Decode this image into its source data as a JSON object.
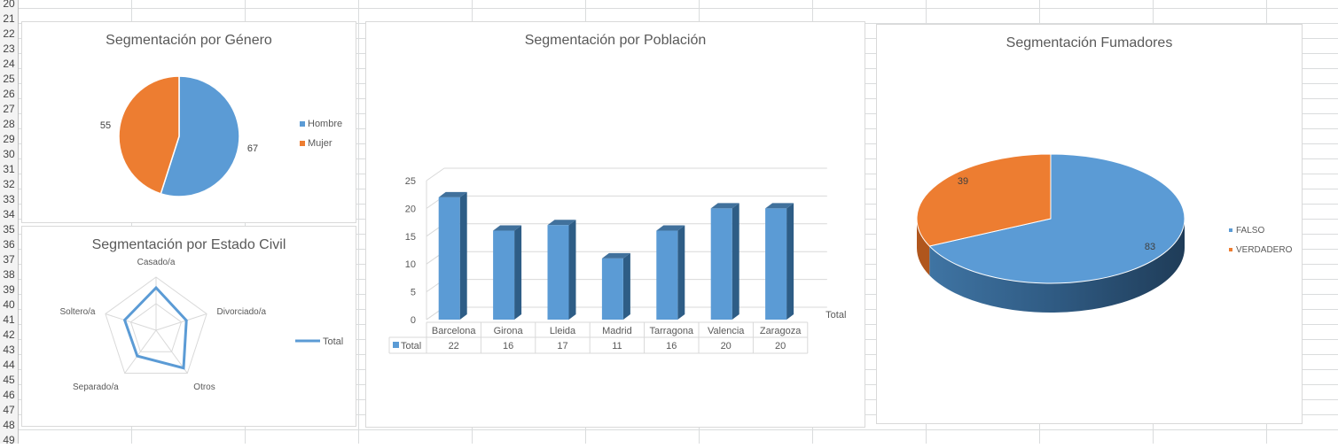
{
  "sheet": {
    "row_numbers": [
      "20",
      "21",
      "22",
      "23",
      "24",
      "25",
      "26",
      "27",
      "28",
      "29",
      "30",
      "31",
      "32",
      "33",
      "34",
      "35",
      "36",
      "37",
      "38",
      "39",
      "40",
      "41",
      "42",
      "43",
      "44",
      "45",
      "46",
      "47",
      "48",
      "49"
    ]
  },
  "colors": {
    "blue": "#5b9bd5",
    "orange": "#ed7d31",
    "dark_blue": "#2e5d86",
    "text": "#595959",
    "gridline": "#d9d9d9"
  },
  "chart_data": [
    {
      "id": "genero",
      "type": "pie",
      "title": "Segmentación por Género",
      "categories": [
        "Hombre",
        "Mujer"
      ],
      "values": [
        67,
        55
      ],
      "colors": [
        "#5b9bd5",
        "#ed7d31"
      ],
      "legend_position": "right",
      "data_labels": true
    },
    {
      "id": "estado_civil",
      "type": "radar",
      "title": "Segmentación por Estado Civil",
      "categories": [
        "Casado/a",
        "Divorciado/a",
        "Otros",
        "Separado/a",
        "Soltero/a"
      ],
      "series": [
        {
          "name": "Total",
          "values": [
            40,
            30,
            44,
            30,
            31
          ]
        }
      ],
      "rmax": 50,
      "rings": 2,
      "legend_position": "right"
    },
    {
      "id": "poblacion",
      "type": "bar",
      "title": "Segmentación por Población",
      "categories": [
        "Barcelona",
        "Girona",
        "Lleida",
        "Madrid",
        "Tarragona",
        "Valencia",
        "Zaragoza"
      ],
      "series": [
        {
          "name": "Total",
          "values": [
            22,
            16,
            17,
            11,
            16,
            20,
            20
          ]
        }
      ],
      "ylim": [
        0,
        25
      ],
      "yticks": [
        0,
        5,
        10,
        15,
        20,
        25
      ],
      "grid": true,
      "data_table": true,
      "depth_axis_label": "Total"
    },
    {
      "id": "fumadores",
      "type": "pie",
      "title": "Segmentación Fumadores",
      "categories": [
        "FALSO",
        "VERDADERO"
      ],
      "values": [
        83,
        39
      ],
      "colors": [
        "#5b9bd5",
        "#ed7d31"
      ],
      "legend_position": "right",
      "data_labels": true,
      "three_d": true
    }
  ]
}
